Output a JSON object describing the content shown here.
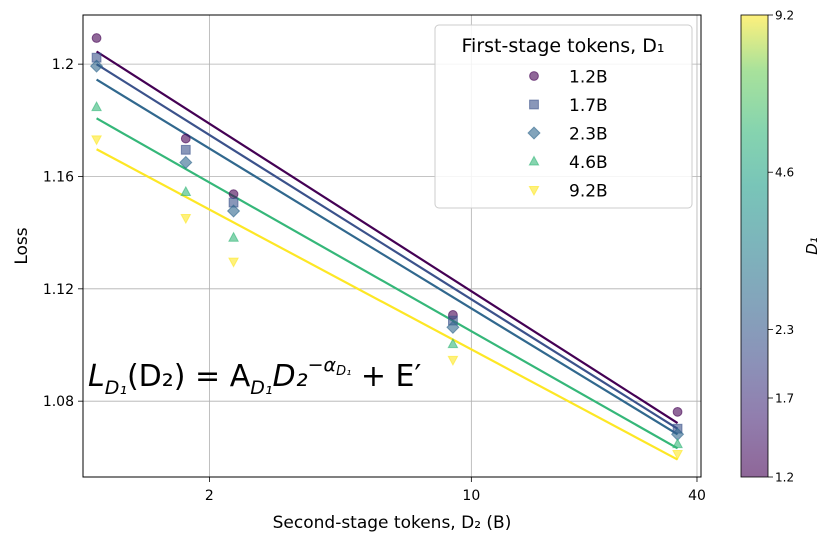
{
  "chart_data": {
    "type": "scatter",
    "title": "",
    "xlabel": "Second-stage tokens, D₂ (B)",
    "ylabel": "Loss",
    "xscale": "log",
    "xlim": [
      0.92,
      41
    ],
    "ylim": [
      1.053,
      1.2175
    ],
    "xticks": [
      2,
      10,
      40
    ],
    "xtick_labels": [
      "2",
      "10",
      "40"
    ],
    "yticks": [
      1.08,
      1.12,
      1.16,
      1.2
    ],
    "ytick_labels": [
      "1.08",
      "1.12",
      "1.16",
      "1.2"
    ],
    "grid": true,
    "legend": {
      "title": "First-stage tokens, D₁",
      "placement": "top-right"
    },
    "annotation": {
      "formula_base": "L",
      "formula_sub1": "D₁",
      "formula_mid": "(D₂) = A",
      "formula_sub2": "D₁",
      "formula_d": "D₂",
      "formula_exp": "−α",
      "formula_exp_sub": "D₁",
      "formula_end": " + E′"
    },
    "colorbar": {
      "label": "D₁",
      "ticks": [
        1.2,
        1.7,
        2.3,
        4.6,
        9.2
      ],
      "tick_labels": [
        "1.2",
        "1.7",
        "2.3",
        "4.6",
        "9.2"
      ]
    },
    "x": [
      1.0,
      1.73,
      2.32,
      8.93,
      35.5
    ],
    "series": [
      {
        "name": "1.2B",
        "color": "#440154",
        "marker": "circle",
        "values": [
          1.2093,
          1.1735,
          1.1537,
          1.1107,
          1.0762
        ],
        "fit": [
          1.2045,
          1.0722
        ]
      },
      {
        "name": "1.7B",
        "color": "#3b528b",
        "marker": "square",
        "values": [
          1.2023,
          1.1695,
          1.1507,
          1.1087,
          1.0702
        ],
        "fit": [
          1.2,
          1.0702
        ]
      },
      {
        "name": "2.3B",
        "color": "#31688e",
        "marker": "diamond",
        "values": [
          1.1993,
          1.165,
          1.1477,
          1.1063,
          1.0682
        ],
        "fit": [
          1.1945,
          1.0682
        ]
      },
      {
        "name": "4.6B",
        "color": "#35b779",
        "marker": "triangle-up",
        "values": [
          1.1847,
          1.1545,
          1.1382,
          1.1003,
          1.0647
        ],
        "fit": [
          1.1807,
          1.0632
        ]
      },
      {
        "name": "9.2B",
        "color": "#fde725",
        "marker": "triangle-down",
        "values": [
          1.1732,
          1.1452,
          1.1297,
          1.0947,
          1.0612
        ],
        "fit": [
          1.1697,
          1.0592
        ]
      }
    ]
  }
}
